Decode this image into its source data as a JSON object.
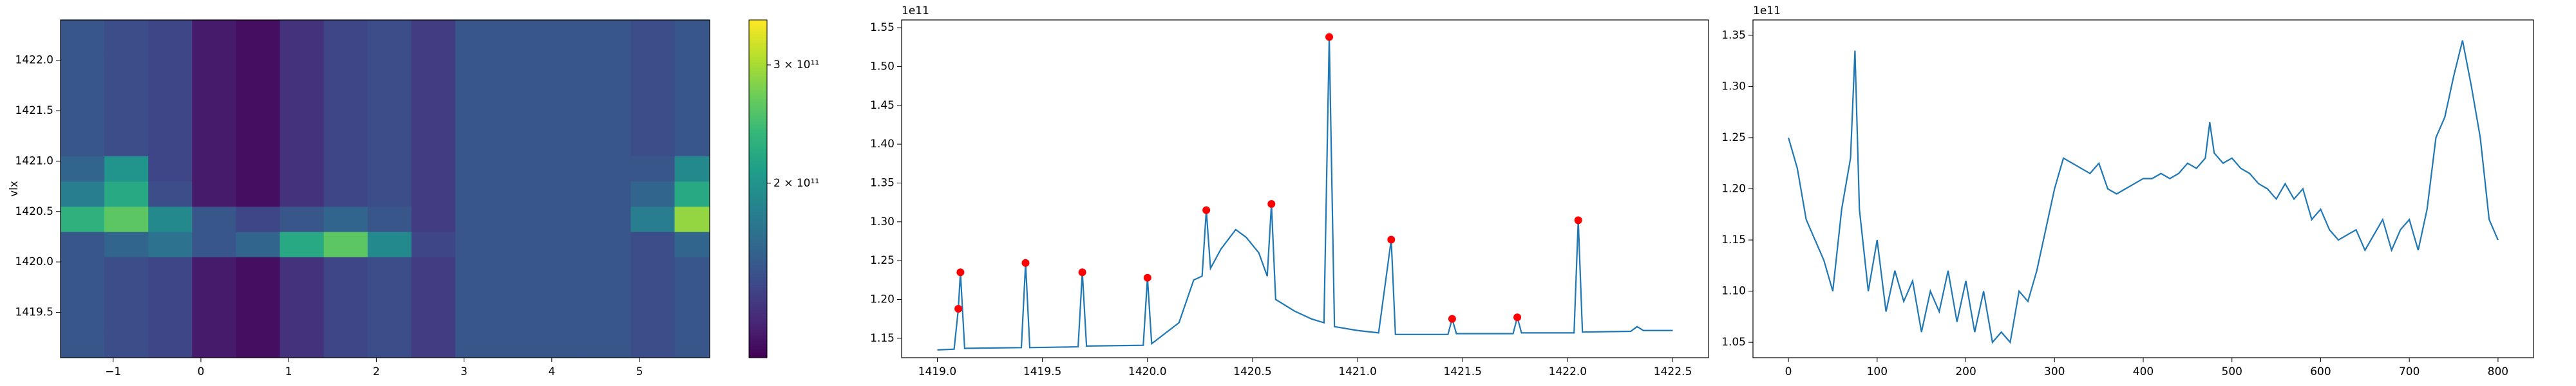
{
  "chart_data": [
    {
      "type": "heatmap",
      "ylabel": "vlx",
      "colormap": "viridis",
      "colorbar_scale": "log",
      "xlim": [
        -1.6,
        5.8
      ],
      "ylim": [
        1419.05,
        1422.4
      ],
      "xticks": [
        {
          "value": -1,
          "label": "−1"
        },
        0,
        1,
        2,
        3,
        4,
        5
      ],
      "yticks": [
        1419.5,
        {
          "value": 1420.0,
          "label": "1420.0"
        },
        1420.5,
        {
          "value": 1421.0,
          "label": "1421.0"
        },
        1421.5,
        {
          "value": 1422.0,
          "label": "1422.0"
        }
      ],
      "xbins": [
        -1.6,
        -1.1,
        -0.6,
        -0.1,
        0.4,
        0.9,
        1.4,
        1.9,
        2.4,
        2.9,
        3.4,
        3.9,
        4.4,
        4.9,
        5.4,
        5.8
      ],
      "ybins": [
        1419.05,
        1419.3,
        1419.55,
        1419.8,
        1420.05,
        1420.3,
        1420.55,
        1420.8,
        1421.05,
        1421.3,
        1421.55,
        1421.8,
        1422.05,
        1422.4
      ],
      "values": [
        [
          150000000000.0,
          145000000000.0,
          140000000000.0,
          120000000000.0,
          115000000000.0,
          130000000000.0,
          140000000000.0,
          145000000000.0,
          135000000000.0,
          150000000000.0,
          150000000000.0,
          150000000000.0,
          150000000000.0,
          145000000000.0,
          150000000000.0
        ],
        [
          150000000000.0,
          145000000000.0,
          140000000000.0,
          120000000000.0,
          115000000000.0,
          130000000000.0,
          140000000000.0,
          145000000000.0,
          135000000000.0,
          150000000000.0,
          150000000000.0,
          150000000000.0,
          150000000000.0,
          145000000000.0,
          150000000000.0
        ],
        [
          150000000000.0,
          145000000000.0,
          140000000000.0,
          120000000000.0,
          115000000000.0,
          130000000000.0,
          140000000000.0,
          145000000000.0,
          135000000000.0,
          150000000000.0,
          150000000000.0,
          150000000000.0,
          150000000000.0,
          145000000000.0,
          150000000000.0
        ],
        [
          150000000000.0,
          145000000000.0,
          140000000000.0,
          120000000000.0,
          115000000000.0,
          130000000000.0,
          140000000000.0,
          145000000000.0,
          135000000000.0,
          150000000000.0,
          150000000000.0,
          150000000000.0,
          150000000000.0,
          145000000000.0,
          150000000000.0
        ],
        [
          150000000000.0,
          160000000000.0,
          170000000000.0,
          150000000000.0,
          160000000000.0,
          220000000000.0,
          260000000000.0,
          190000000000.0,
          140000000000.0,
          150000000000.0,
          150000000000.0,
          150000000000.0,
          150000000000.0,
          145000000000.0,
          160000000000.0
        ],
        [
          230000000000.0,
          260000000000.0,
          190000000000.0,
          150000000000.0,
          140000000000.0,
          150000000000.0,
          160000000000.0,
          150000000000.0,
          135000000000.0,
          150000000000.0,
          150000000000.0,
          150000000000.0,
          150000000000.0,
          180000000000.0,
          290000000000.0
        ],
        [
          180000000000.0,
          220000000000.0,
          145000000000.0,
          120000000000.0,
          115000000000.0,
          130000000000.0,
          140000000000.0,
          145000000000.0,
          135000000000.0,
          150000000000.0,
          150000000000.0,
          150000000000.0,
          150000000000.0,
          160000000000.0,
          220000000000.0
        ],
        [
          160000000000.0,
          200000000000.0,
          140000000000.0,
          120000000000.0,
          115000000000.0,
          130000000000.0,
          140000000000.0,
          145000000000.0,
          135000000000.0,
          150000000000.0,
          150000000000.0,
          150000000000.0,
          150000000000.0,
          150000000000.0,
          190000000000.0
        ],
        [
          150000000000.0,
          145000000000.0,
          140000000000.0,
          120000000000.0,
          115000000000.0,
          130000000000.0,
          140000000000.0,
          145000000000.0,
          135000000000.0,
          150000000000.0,
          150000000000.0,
          150000000000.0,
          150000000000.0,
          145000000000.0,
          150000000000.0
        ],
        [
          150000000000.0,
          145000000000.0,
          140000000000.0,
          120000000000.0,
          115000000000.0,
          130000000000.0,
          140000000000.0,
          145000000000.0,
          135000000000.0,
          150000000000.0,
          150000000000.0,
          150000000000.0,
          150000000000.0,
          145000000000.0,
          150000000000.0
        ],
        [
          150000000000.0,
          145000000000.0,
          140000000000.0,
          120000000000.0,
          115000000000.0,
          130000000000.0,
          140000000000.0,
          145000000000.0,
          135000000000.0,
          150000000000.0,
          150000000000.0,
          150000000000.0,
          150000000000.0,
          145000000000.0,
          150000000000.0
        ],
        [
          150000000000.0,
          145000000000.0,
          140000000000.0,
          120000000000.0,
          115000000000.0,
          130000000000.0,
          140000000000.0,
          145000000000.0,
          135000000000.0,
          150000000000.0,
          150000000000.0,
          150000000000.0,
          150000000000.0,
          145000000000.0,
          150000000000.0
        ],
        [
          150000000000.0,
          145000000000.0,
          140000000000.0,
          120000000000.0,
          115000000000.0,
          130000000000.0,
          140000000000.0,
          145000000000.0,
          135000000000.0,
          150000000000.0,
          150000000000.0,
          150000000000.0,
          150000000000.0,
          145000000000.0,
          150000000000.0
        ]
      ],
      "clim": [
        110000000000.0,
        350000000000.0
      ],
      "cticks": [
        {
          "value": 200000000000.0,
          "label": "2 × 10¹¹"
        },
        {
          "value": 300000000000.0,
          "label": "3 × 10¹¹"
        }
      ]
    },
    {
      "type": "line",
      "offset_text": "1e11",
      "xlim": [
        1418.83,
        1422.67
      ],
      "ylim": [
        1.125,
        1.56
      ],
      "xticks": [
        {
          "value": 1419.0,
          "label": "1419.0"
        },
        1419.5,
        {
          "value": 1420.0,
          "label": "1420.0"
        },
        1420.5,
        {
          "value": 1421.0,
          "label": "1421.0"
        },
        1421.5,
        {
          "value": 1422.0,
          "label": "1422.0"
        },
        1422.5
      ],
      "yticks": [
        1.15,
        {
          "value": 1.2,
          "label": "1.20"
        },
        1.25,
        {
          "value": 1.3,
          "label": "1.30"
        },
        1.35,
        {
          "value": 1.4,
          "label": "1.40"
        },
        1.45,
        {
          "value": 1.5,
          "label": "1.50"
        },
        1.55
      ],
      "series": [
        {
          "type": "line",
          "color": "#1f77b4",
          "x": [
            1419.0,
            1419.08,
            1419.1,
            1419.11,
            1419.13,
            1419.4,
            1419.42,
            1419.44,
            1419.67,
            1419.69,
            1419.71,
            1419.98,
            1420.0,
            1420.02,
            1420.15,
            1420.22,
            1420.26,
            1420.28,
            1420.3,
            1420.35,
            1420.42,
            1420.47,
            1420.53,
            1420.57,
            1420.59,
            1420.61,
            1420.7,
            1420.78,
            1420.84,
            1420.865,
            1420.89,
            1421.0,
            1421.1,
            1421.16,
            1421.18,
            1421.43,
            1421.45,
            1421.47,
            1421.74,
            1421.76,
            1421.78,
            1422.03,
            1422.05,
            1422.07,
            1422.3,
            1422.33,
            1422.36,
            1422.5
          ],
          "values": [
            1.135,
            1.136,
            1.188,
            1.235,
            1.137,
            1.138,
            1.247,
            1.138,
            1.139,
            1.235,
            1.14,
            1.141,
            1.228,
            1.143,
            1.17,
            1.225,
            1.23,
            1.315,
            1.24,
            1.265,
            1.29,
            1.28,
            1.26,
            1.23,
            1.323,
            1.2,
            1.185,
            1.175,
            1.17,
            1.538,
            1.165,
            1.16,
            1.157,
            1.277,
            1.155,
            1.155,
            1.175,
            1.156,
            1.156,
            1.177,
            1.157,
            1.157,
            1.302,
            1.158,
            1.159,
            1.165,
            1.16,
            1.16
          ]
        },
        {
          "type": "scatter",
          "color": "red",
          "x": [
            1419.1,
            1419.11,
            1419.42,
            1419.69,
            1420.0,
            1420.28,
            1420.59,
            1420.865,
            1421.16,
            1421.45,
            1421.76,
            1422.05
          ],
          "values": [
            1.188,
            1.235,
            1.247,
            1.235,
            1.228,
            1.315,
            1.323,
            1.538,
            1.277,
            1.175,
            1.177,
            1.302
          ]
        }
      ]
    },
    {
      "type": "line",
      "offset_text": "1e11",
      "xlim": [
        -40,
        840
      ],
      "ylim": [
        1.035,
        1.365
      ],
      "xticks": [
        0,
        100,
        200,
        300,
        400,
        500,
        600,
        700,
        800
      ],
      "yticks": [
        1.05,
        {
          "value": 1.1,
          "label": "1.10"
        },
        1.15,
        {
          "value": 1.2,
          "label": "1.20"
        },
        1.25,
        {
          "value": 1.3,
          "label": "1.30"
        },
        1.35
      ],
      "series": [
        {
          "type": "line",
          "color": "#1f77b4",
          "x": [
            0,
            10,
            20,
            30,
            40,
            50,
            60,
            70,
            75,
            80,
            90,
            100,
            110,
            120,
            130,
            140,
            150,
            160,
            170,
            180,
            190,
            200,
            210,
            220,
            230,
            240,
            250,
            260,
            270,
            280,
            290,
            300,
            310,
            320,
            330,
            340,
            350,
            360,
            370,
            380,
            390,
            400,
            410,
            420,
            430,
            440,
            450,
            460,
            470,
            475,
            480,
            490,
            500,
            510,
            520,
            530,
            540,
            550,
            560,
            570,
            580,
            590,
            600,
            610,
            620,
            630,
            640,
            650,
            660,
            670,
            680,
            690,
            700,
            710,
            720,
            730,
            740,
            750,
            760,
            770,
            780,
            790,
            800
          ],
          "values": [
            1.25,
            1.22,
            1.17,
            1.15,
            1.13,
            1.1,
            1.18,
            1.23,
            1.335,
            1.18,
            1.1,
            1.15,
            1.08,
            1.12,
            1.09,
            1.11,
            1.06,
            1.1,
            1.08,
            1.12,
            1.07,
            1.11,
            1.06,
            1.1,
            1.05,
            1.06,
            1.05,
            1.1,
            1.09,
            1.12,
            1.16,
            1.2,
            1.23,
            1.225,
            1.22,
            1.215,
            1.225,
            1.2,
            1.195,
            1.2,
            1.205,
            1.21,
            1.21,
            1.215,
            1.21,
            1.215,
            1.225,
            1.22,
            1.23,
            1.265,
            1.235,
            1.225,
            1.23,
            1.22,
            1.215,
            1.205,
            1.2,
            1.19,
            1.205,
            1.19,
            1.2,
            1.17,
            1.18,
            1.16,
            1.15,
            1.155,
            1.16,
            1.14,
            1.155,
            1.17,
            1.14,
            1.16,
            1.17,
            1.14,
            1.18,
            1.25,
            1.27,
            1.31,
            1.345,
            1.3,
            1.25,
            1.17,
            1.15
          ]
        }
      ]
    }
  ]
}
